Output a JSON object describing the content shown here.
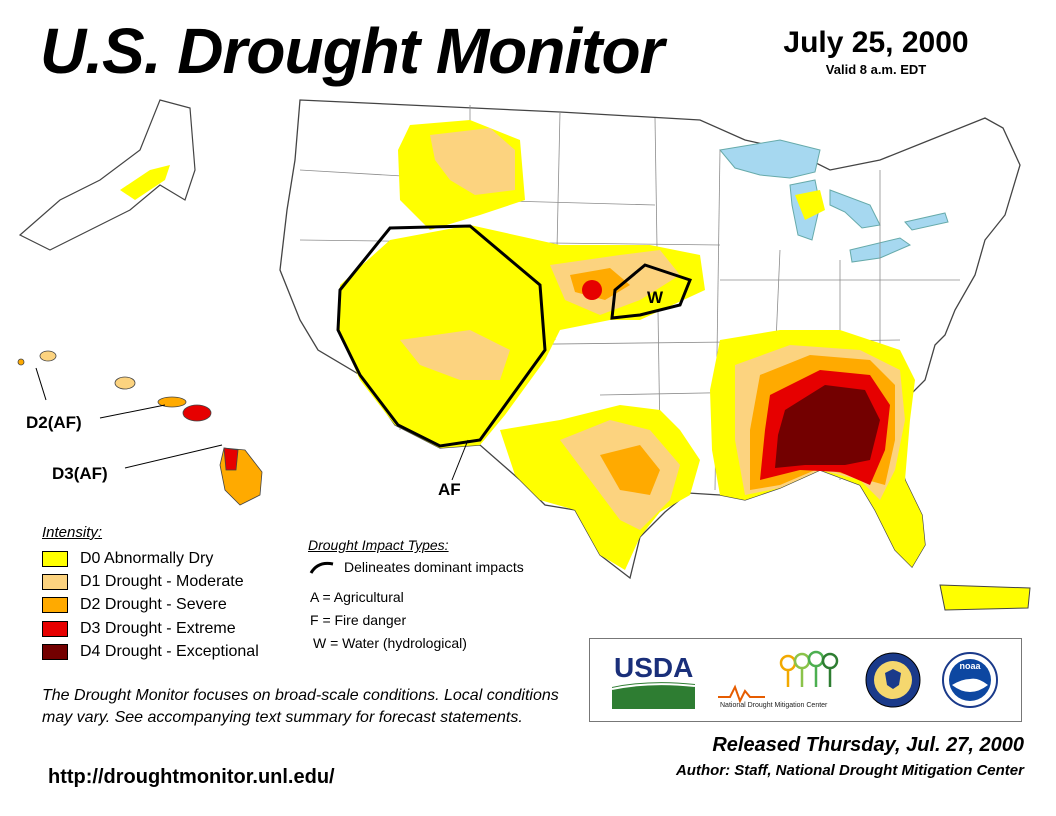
{
  "header": {
    "title": "U.S. Drought Monitor",
    "date": "July 25, 2000",
    "valid": "Valid 8 a.m. EDT"
  },
  "map_labels": {
    "hawaii_d2": "D2(AF)",
    "hawaii_d3": "D3(AF)",
    "west_af": "AF",
    "plains_w": "W"
  },
  "legend": {
    "title": "Intensity:",
    "items": [
      {
        "code": "D0",
        "label": "D0 Abnormally Dry",
        "color": "#ffff00"
      },
      {
        "code": "D1",
        "label": "D1 Drought - Moderate",
        "color": "#fcd37f"
      },
      {
        "code": "D2",
        "label": "D2 Drought - Severe",
        "color": "#ffaa00"
      },
      {
        "code": "D3",
        "label": "D3 Drought - Extreme",
        "color": "#e60000"
      },
      {
        "code": "D4",
        "label": "D4 Drought - Exceptional",
        "color": "#730000"
      }
    ]
  },
  "impact_types": {
    "title": "Drought Impact Types:",
    "delineates": "Delineates dominant impacts",
    "items": [
      {
        "code": "A",
        "label": "A = Agricultural"
      },
      {
        "code": "F",
        "label": "F = Fire danger"
      },
      {
        "code": "W",
        "label": "W = Water (hydrological)"
      }
    ]
  },
  "note": "The Drought Monitor focuses on broad-scale conditions. Local conditions may vary. See accompanying text summary for forecast statements.",
  "url": "http://droughtmonitor.unl.edu/",
  "released": "Released Thursday, Jul. 27, 2000",
  "author": "Author: Staff, National Drought Mitigation Center",
  "logos": {
    "usda_text": "USDA",
    "ndmc_text": "National Drought Mitigation Center",
    "noaa_text": "noaa"
  },
  "colors": {
    "water": "#a6d8f0",
    "state_border": "#8c8c8c",
    "usda_blue": "#1a2f7a",
    "usda_green": "#2e7d32"
  }
}
